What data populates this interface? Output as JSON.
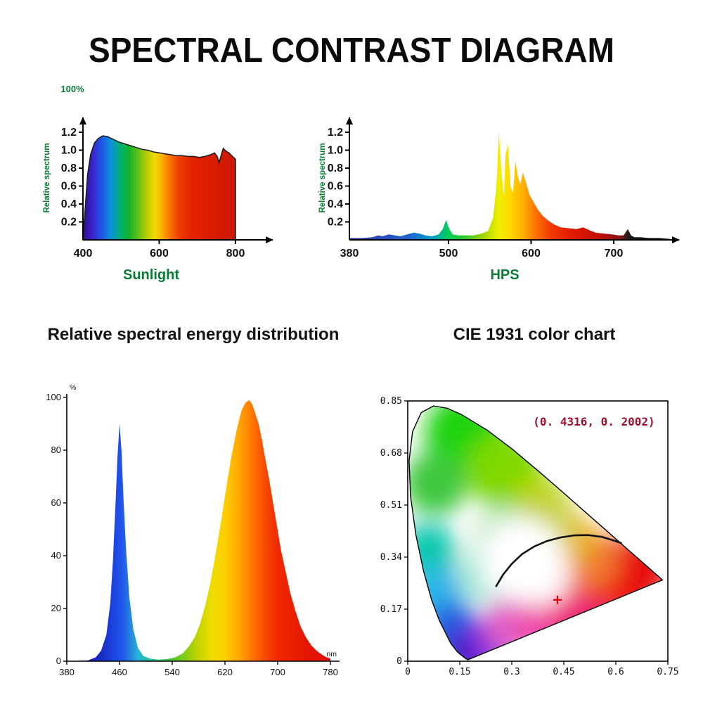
{
  "page_title": "SPECTRAL CONTRAST DIAGRAM",
  "sections": {
    "energy_title": "Relative spectral energy distribution",
    "cie_title": "CIE 1931 color chart"
  },
  "chart_data": [
    {
      "id": "sunlight",
      "type": "area",
      "title": "Sunlight",
      "ylabel": "Relative spectrum",
      "top_label": "100%",
      "xlim": [
        400,
        830
      ],
      "ylim": [
        0,
        1.3
      ],
      "xticks": [
        "400",
        "600",
        "800"
      ],
      "yticks": [
        "0.2",
        "0.4",
        "0.6",
        "0.8",
        "1.0",
        "1.2"
      ],
      "x": [
        400,
        405,
        412,
        420,
        430,
        440,
        452,
        465,
        480,
        495,
        510,
        525,
        540,
        555,
        570,
        585,
        600,
        615,
        630,
        645,
        660,
        675,
        690,
        705,
        720,
        735,
        745,
        752,
        757,
        762,
        768,
        775,
        783,
        792,
        800
      ],
      "y": [
        0.0,
        0.3,
        0.72,
        0.95,
        1.08,
        1.13,
        1.16,
        1.15,
        1.12,
        1.09,
        1.07,
        1.05,
        1.03,
        1.01,
        1.0,
        0.98,
        0.97,
        0.96,
        0.95,
        0.94,
        0.94,
        0.93,
        0.93,
        0.92,
        0.93,
        0.95,
        0.97,
        0.93,
        0.86,
        0.94,
        1.02,
        0.99,
        0.97,
        0.93,
        0.9
      ],
      "gradient": [
        [
          0,
          "#2f0c8e"
        ],
        [
          0.06,
          "#3b21c8"
        ],
        [
          0.12,
          "#1f54e6"
        ],
        [
          0.18,
          "#0d8fdc"
        ],
        [
          0.24,
          "#00b07c"
        ],
        [
          0.3,
          "#10b428"
        ],
        [
          0.36,
          "#5fc01a"
        ],
        [
          0.42,
          "#b8cc00"
        ],
        [
          0.47,
          "#f0dc00"
        ],
        [
          0.52,
          "#fcae00"
        ],
        [
          0.57,
          "#f97300"
        ],
        [
          0.63,
          "#ee3d00"
        ],
        [
          0.72,
          "#e42200"
        ],
        [
          0.85,
          "#d81c00"
        ],
        [
          1,
          "#cc1800"
        ]
      ]
    },
    {
      "id": "hps",
      "type": "area",
      "title": "HPS",
      "ylabel": "Relative spectrum",
      "xlim": [
        380,
        780
      ],
      "ylim": [
        0,
        1.3
      ],
      "xticks": [
        "380",
        "500",
        "600",
        "700"
      ],
      "yticks": [
        "0.2",
        "0.4",
        "0.6",
        "0.8",
        "1.0",
        "1.2"
      ],
      "x": [
        380,
        395,
        408,
        415,
        420,
        428,
        435,
        442,
        450,
        458,
        465,
        472,
        480,
        488,
        493,
        497,
        501,
        505,
        512,
        520,
        530,
        540,
        548,
        554,
        558,
        561,
        564,
        567,
        569,
        572,
        575,
        578,
        581,
        584,
        587,
        590,
        594,
        598,
        603,
        608,
        614,
        620,
        628,
        636,
        645,
        655,
        663,
        670,
        678,
        688,
        698,
        706,
        712,
        717,
        721,
        725,
        732,
        742,
        755,
        768
      ],
      "y": [
        0.02,
        0.02,
        0.03,
        0.05,
        0.04,
        0.06,
        0.05,
        0.04,
        0.06,
        0.08,
        0.07,
        0.05,
        0.04,
        0.06,
        0.12,
        0.22,
        0.12,
        0.06,
        0.05,
        0.05,
        0.05,
        0.07,
        0.1,
        0.25,
        0.6,
        1.21,
        0.75,
        0.5,
        0.95,
        1.06,
        0.6,
        0.52,
        0.88,
        0.7,
        0.62,
        0.75,
        0.63,
        0.5,
        0.42,
        0.34,
        0.27,
        0.22,
        0.17,
        0.14,
        0.13,
        0.12,
        0.14,
        0.11,
        0.08,
        0.07,
        0.06,
        0.05,
        0.05,
        0.12,
        0.05,
        0.03,
        0.03,
        0.02,
        0.02,
        0.01
      ],
      "gradient": [
        [
          0,
          "#31319a"
        ],
        [
          0.18,
          "#2060d0"
        ],
        [
          0.26,
          "#00a0c8"
        ],
        [
          0.31,
          "#00cf50"
        ],
        [
          0.36,
          "#2ec62e"
        ],
        [
          0.42,
          "#a8d400"
        ],
        [
          0.465,
          "#eef000"
        ],
        [
          0.5,
          "#ffd800"
        ],
        [
          0.545,
          "#ffae00"
        ],
        [
          0.58,
          "#ff7300"
        ],
        [
          0.63,
          "#f23800"
        ],
        [
          0.7,
          "#e01800"
        ],
        [
          0.77,
          "#c61000"
        ],
        [
          0.84,
          "#8e1010"
        ],
        [
          0.875,
          "#1a1a1a"
        ],
        [
          1,
          "#000000"
        ]
      ]
    },
    {
      "id": "energy",
      "type": "area",
      "title": "Relative spectral energy distribution",
      "ylabel_unit": "%",
      "xlabel_unit": "nm",
      "xlim": [
        380,
        790
      ],
      "ylim": [
        0,
        100
      ],
      "xticks": [
        "380",
        "460",
        "540",
        "620",
        "700",
        "780"
      ],
      "yticks": [
        "0",
        "20",
        "40",
        "60",
        "80",
        "100"
      ],
      "x": [
        380,
        412,
        424,
        432,
        440,
        446,
        450,
        454,
        457,
        460,
        463,
        466,
        470,
        475,
        481,
        488,
        496,
        506,
        518,
        532,
        545,
        556,
        565,
        574,
        582,
        590,
        598,
        606,
        614,
        622,
        630,
        638,
        645,
        651,
        657,
        662,
        666,
        671,
        676,
        681,
        687,
        693,
        699,
        705,
        712,
        719,
        727,
        735,
        743,
        751,
        759,
        767,
        774,
        780
      ],
      "y": [
        0,
        0.3,
        1.5,
        4,
        10,
        22,
        38,
        60,
        78,
        90,
        80,
        62,
        42,
        24,
        12,
        5,
        2,
        1,
        0.6,
        0.8,
        1.5,
        3,
        5.5,
        9,
        14,
        21,
        30,
        41,
        53,
        66,
        78,
        88,
        95,
        98,
        99,
        97,
        94,
        90,
        84,
        77,
        69,
        60,
        51,
        42,
        34,
        26,
        19,
        13,
        9,
        6,
        4,
        2.5,
        1.5,
        1
      ],
      "gradient": [
        [
          0,
          "#14148c"
        ],
        [
          0.13,
          "#1a2ac0"
        ],
        [
          0.175,
          "#1b44e0"
        ],
        [
          0.21,
          "#2154ea"
        ],
        [
          0.27,
          "#27b4d8"
        ],
        [
          0.33,
          "#25c487"
        ],
        [
          0.4,
          "#4ec62e"
        ],
        [
          0.455,
          "#8ccc12"
        ],
        [
          0.5,
          "#c6d400"
        ],
        [
          0.55,
          "#eede00"
        ],
        [
          0.6,
          "#fccf00"
        ],
        [
          0.655,
          "#ffa500"
        ],
        [
          0.7,
          "#ff7a00"
        ],
        [
          0.75,
          "#f84b00"
        ],
        [
          0.8,
          "#f02900"
        ],
        [
          0.9,
          "#e61700"
        ],
        [
          1,
          "#de1010"
        ]
      ]
    },
    {
      "id": "cie",
      "type": "heatmap",
      "title": "CIE 1931 color chart",
      "annotation": "(0. 4316, 0. 2002)",
      "point": {
        "x": 0.4316,
        "y": 0.2002
      },
      "xlim": [
        0,
        0.75
      ],
      "ylim": [
        0,
        0.85
      ],
      "xticks": [
        "0",
        "0.15",
        "0.3",
        "0.45",
        "0.6",
        "0.75"
      ],
      "yticks": [
        "0",
        "0.17",
        "0.34",
        "0.51",
        "0.68",
        "0.85"
      ],
      "locus": [
        [
          0.1741,
          0.005
        ],
        [
          0.1726,
          0.0048
        ],
        [
          0.1644,
          0.0109
        ],
        [
          0.144,
          0.0297
        ],
        [
          0.1241,
          0.0578
        ],
        [
          0.0913,
          0.1327
        ],
        [
          0.0687,
          0.2007
        ],
        [
          0.0454,
          0.295
        ],
        [
          0.0235,
          0.4127
        ],
        [
          0.0082,
          0.5384
        ],
        [
          0.0039,
          0.6548
        ],
        [
          0.0139,
          0.7502
        ],
        [
          0.0389,
          0.812
        ],
        [
          0.0743,
          0.8338
        ],
        [
          0.1142,
          0.8262
        ],
        [
          0.1547,
          0.8059
        ],
        [
          0.2296,
          0.7543
        ],
        [
          0.3016,
          0.6923
        ],
        [
          0.3731,
          0.6245
        ],
        [
          0.4441,
          0.5547
        ],
        [
          0.5125,
          0.4866
        ],
        [
          0.5752,
          0.4242
        ],
        [
          0.627,
          0.3725
        ],
        [
          0.6658,
          0.334
        ],
        [
          0.6915,
          0.3083
        ],
        [
          0.719,
          0.2809
        ],
        [
          0.7347,
          0.2653
        ]
      ],
      "planckian": [
        [
          0.255,
          0.245
        ],
        [
          0.275,
          0.283
        ],
        [
          0.3,
          0.318
        ],
        [
          0.33,
          0.35
        ],
        [
          0.365,
          0.375
        ],
        [
          0.4,
          0.392
        ],
        [
          0.44,
          0.404
        ],
        [
          0.48,
          0.411
        ],
        [
          0.52,
          0.412
        ],
        [
          0.56,
          0.406
        ],
        [
          0.6,
          0.392
        ],
        [
          0.615,
          0.386
        ]
      ],
      "color_spots": [
        [
          0.17,
          0.74,
          "#1fd40a",
          60
        ],
        [
          0.08,
          0.58,
          "#3ec83c",
          45
        ],
        [
          0.28,
          0.62,
          "#7fd800",
          55
        ],
        [
          0.38,
          0.5,
          "#b8d400",
          45
        ],
        [
          0.06,
          0.36,
          "#10c8b0",
          40
        ],
        [
          0.09,
          0.22,
          "#28b4e8",
          40
        ],
        [
          0.13,
          0.1,
          "#2858e0",
          40
        ],
        [
          0.17,
          0.02,
          "#3418c8",
          35
        ],
        [
          0.24,
          0.06,
          "#8028d8",
          35
        ],
        [
          0.3,
          0.12,
          "#e060c8",
          40
        ],
        [
          0.4,
          0.12,
          "#f048a8",
          45
        ],
        [
          0.5,
          0.18,
          "#ee2877",
          50
        ],
        [
          0.62,
          0.28,
          "#ee1111",
          55
        ],
        [
          0.68,
          0.3,
          "#e80c0c",
          40
        ],
        [
          0.52,
          0.33,
          "#f07830",
          45
        ],
        [
          0.46,
          0.4,
          "#e8b428",
          40
        ],
        [
          0.4,
          0.44,
          "#cfd24a",
          40
        ],
        [
          0.28,
          0.4,
          "#bfe8c0",
          45
        ],
        [
          0.22,
          0.28,
          "#a8e8d8",
          40
        ],
        [
          0.38,
          0.28,
          "#ffeef2",
          45
        ],
        [
          0.33,
          0.33,
          "#ffffff",
          60
        ]
      ],
      "marker_color": "#e00000",
      "annotation_color": "#9c1130"
    }
  ]
}
